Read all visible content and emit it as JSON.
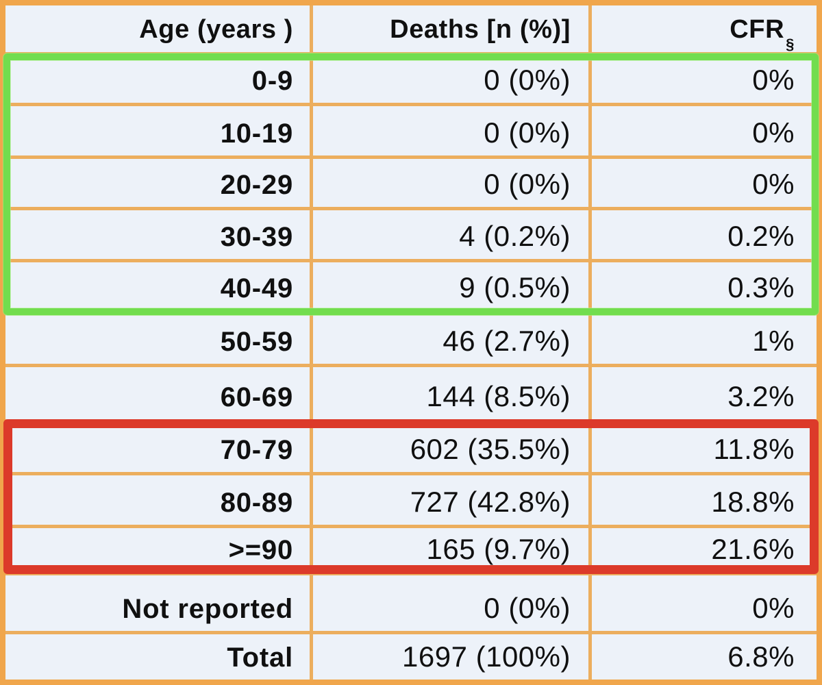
{
  "colors": {
    "table_border_orange": "#f0a64c",
    "grid_line_orange": "#ecae5e",
    "green_highlight": "#72dd4e",
    "red_highlight": "#dc3a2a",
    "cell_background": "#edf2f9",
    "text": "#101010"
  },
  "table": {
    "columns": {
      "age": "Age (years )",
      "deaths": "Deaths [n (%)]",
      "cfr": "CFR",
      "cfr_superscript": "§"
    },
    "rows": [
      {
        "age": "0-9",
        "deaths": "0 (0%)",
        "cfr": "0%"
      },
      {
        "age": "10-19",
        "deaths": "0 (0%)",
        "cfr": "0%"
      },
      {
        "age": "20-29",
        "deaths": "0 (0%)",
        "cfr": "0%"
      },
      {
        "age": "30-39",
        "deaths": "4 (0.2%)",
        "cfr": "0.2%"
      },
      {
        "age": "40-49",
        "deaths": "9 (0.5%)",
        "cfr": "0.3%"
      },
      {
        "age": "50-59",
        "deaths": "46 (2.7%)",
        "cfr": "1%"
      },
      {
        "age": "60-69",
        "deaths": "144 (8.5%)",
        "cfr": "3.2%"
      },
      {
        "age": "70-79",
        "deaths": "602 (35.5%)",
        "cfr": "11.8%"
      },
      {
        "age": "80-89",
        "deaths": "727 (42.8%)",
        "cfr": "18.8%"
      },
      {
        "age": ">=90",
        "deaths": "165 (9.7%)",
        "cfr": "21.6%"
      },
      {
        "age": "Not reported",
        "deaths": "0 (0%)",
        "cfr": "0%"
      },
      {
        "age": "Total",
        "deaths": "1697 (100%)",
        "cfr": "6.8%"
      }
    ],
    "highlights": {
      "green_box_rows": [
        "0-9",
        "10-19",
        "20-29",
        "30-39",
        "40-49"
      ],
      "red_box_rows": [
        "70-79",
        "80-89",
        ">=90"
      ]
    }
  },
  "chart_data": {
    "type": "table",
    "title": "",
    "columns": [
      "Age (years )",
      "Deaths [n (%)]",
      "CFR§"
    ],
    "rows": [
      [
        "0-9",
        "0 (0%)",
        "0%"
      ],
      [
        "10-19",
        "0 (0%)",
        "0%"
      ],
      [
        "20-29",
        "0 (0%)",
        "0%"
      ],
      [
        "30-39",
        "4 (0.2%)",
        "0.2%"
      ],
      [
        "40-49",
        "9 (0.5%)",
        "0.3%"
      ],
      [
        "50-59",
        "46 (2.7%)",
        "1%"
      ],
      [
        "60-69",
        "144 (8.5%)",
        "3.2%"
      ],
      [
        "70-79",
        "602 (35.5%)",
        "11.8%"
      ],
      [
        "80-89",
        "727 (42.8%)",
        "18.8%"
      ],
      [
        ">=90",
        "165 (9.7%)",
        "21.6%"
      ],
      [
        "Not reported",
        "0 (0%)",
        "0%"
      ],
      [
        "Total",
        "1697 (100%)",
        "6.8%"
      ]
    ],
    "annotations": [
      {
        "shape": "green-box",
        "color": "#72dd4e",
        "covers_rows": "0-9 through 40-49"
      },
      {
        "shape": "red-box",
        "color": "#dc3a2a",
        "covers_rows": "70-79 through >=90"
      }
    ]
  }
}
